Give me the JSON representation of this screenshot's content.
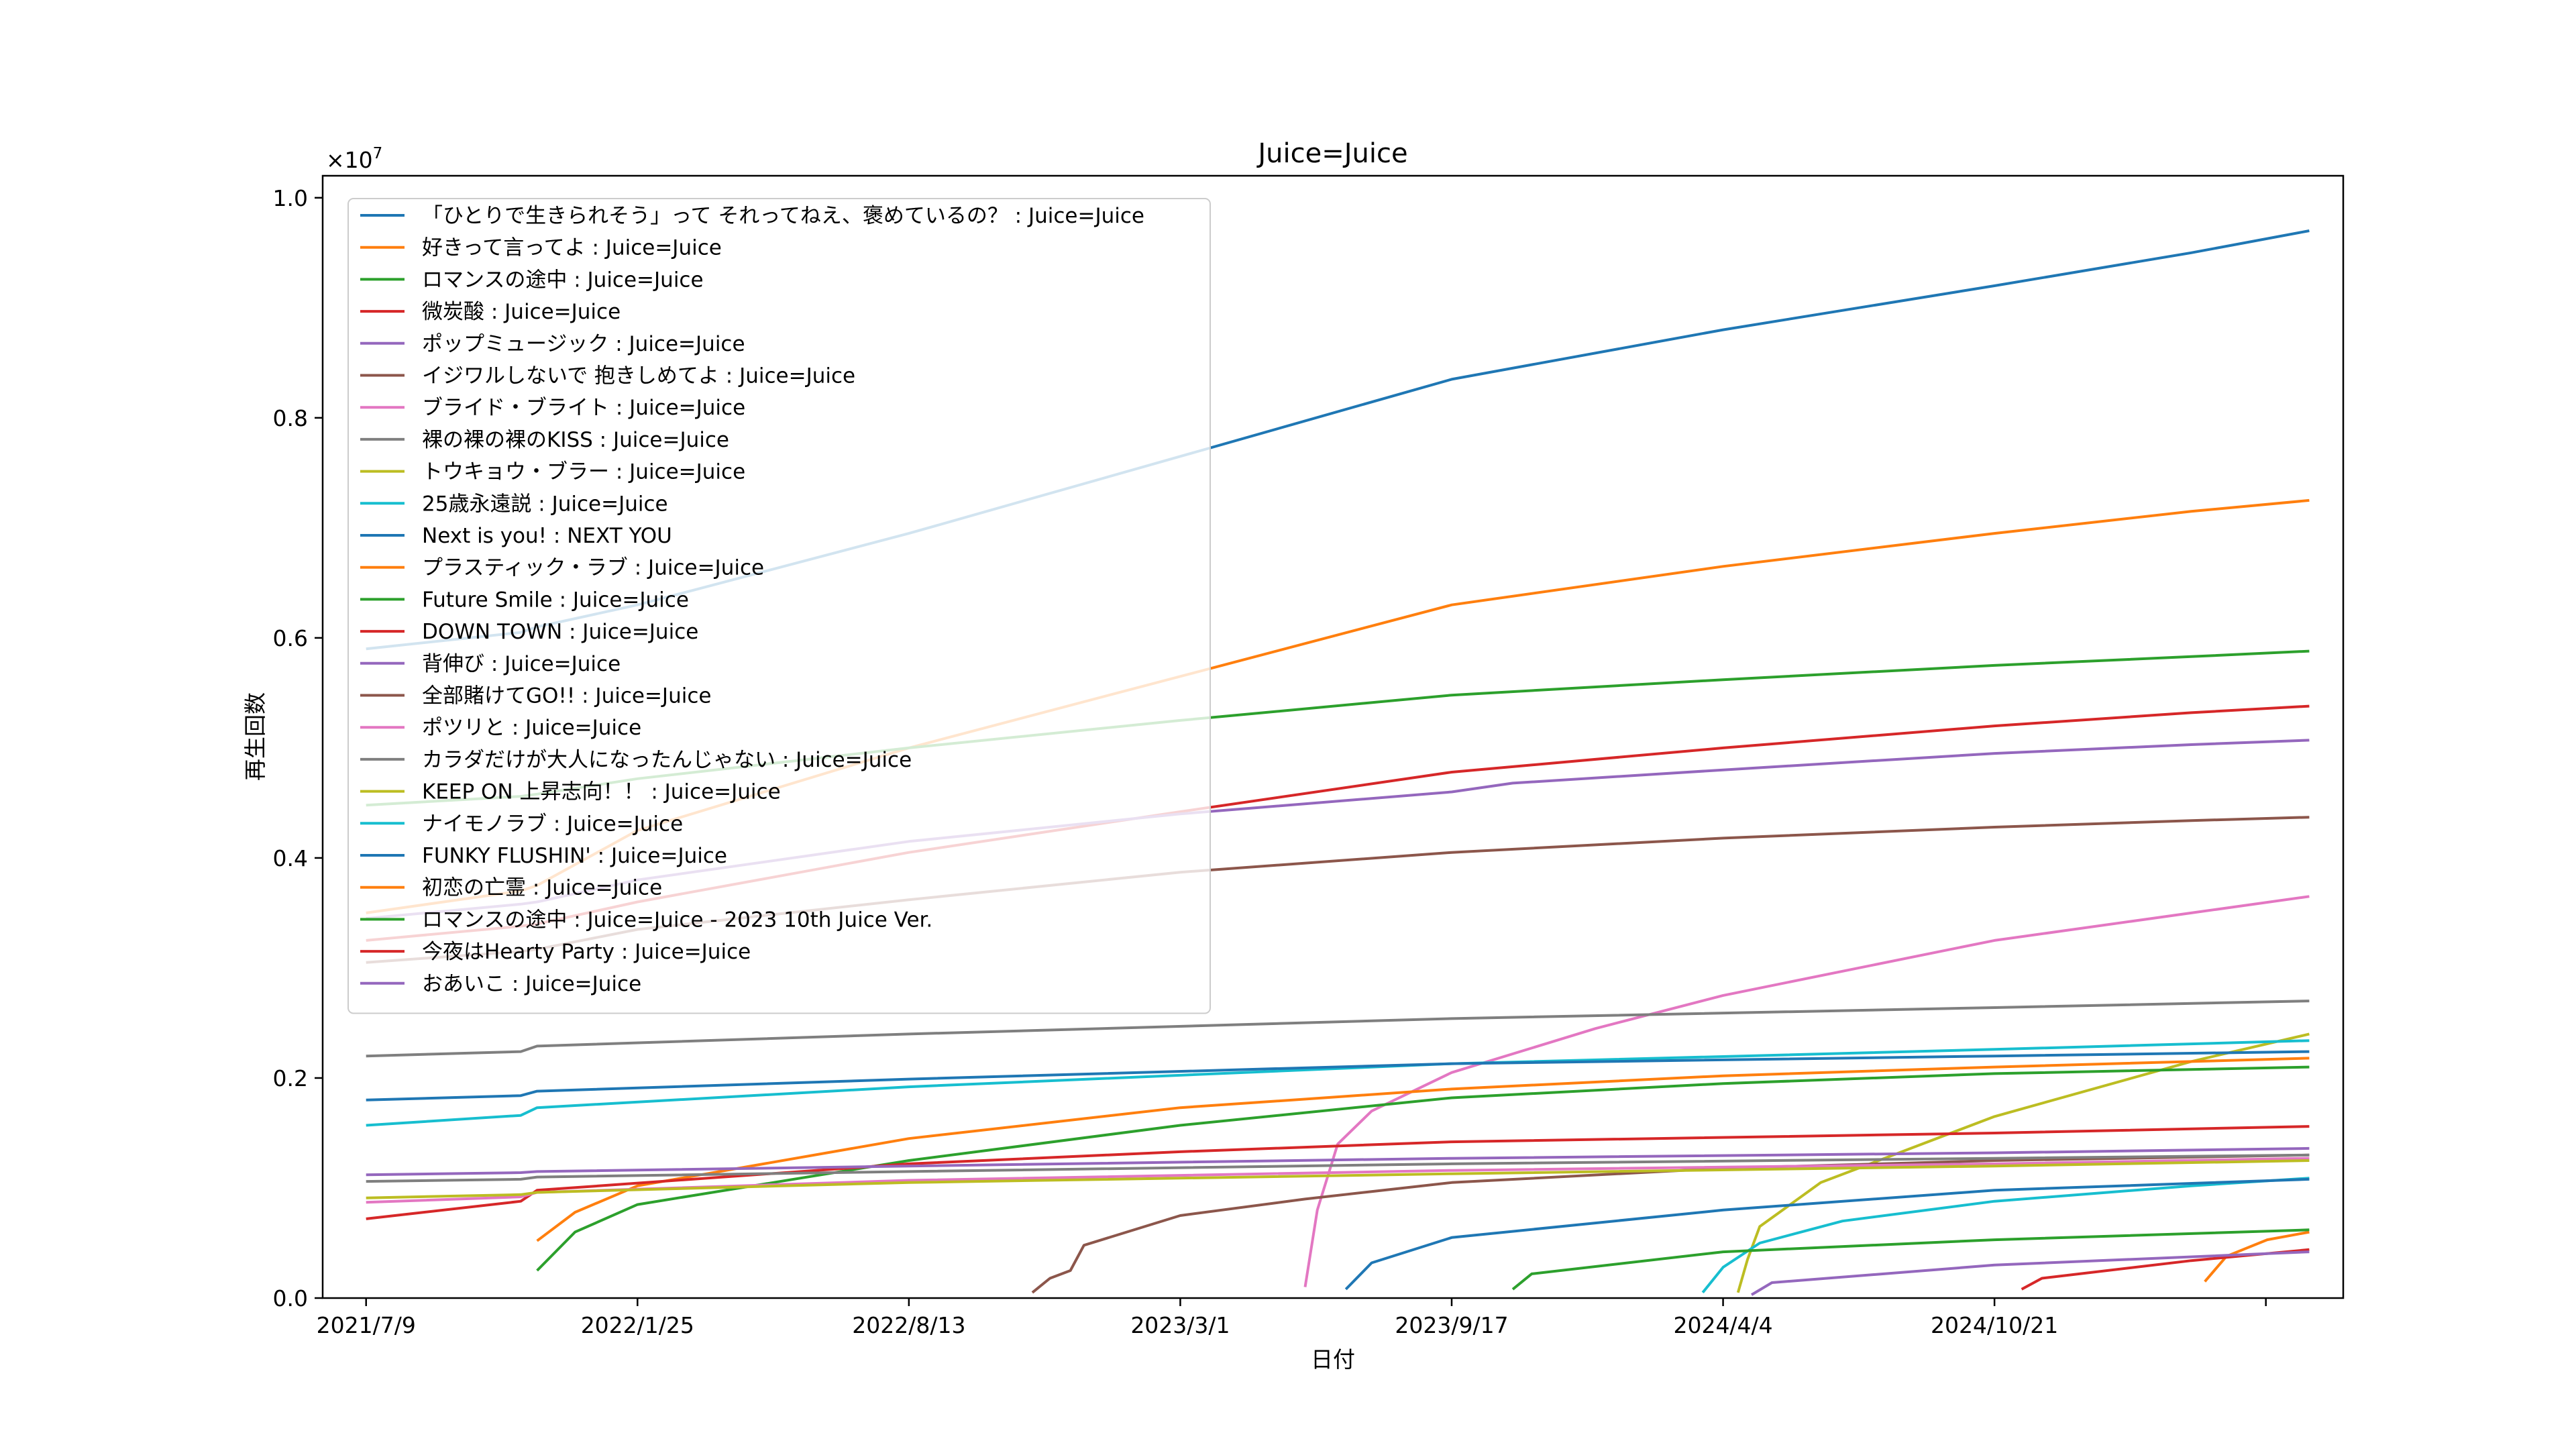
{
  "chart_data": {
    "type": "line",
    "title": "Juice=Juice",
    "xlabel": "日付",
    "ylabel": "再生回数",
    "y_offset_label": "×10",
    "y_offset_exp": "7",
    "ylim": [
      0,
      10200000
    ],
    "y_ticks": [
      0,
      2000000,
      4000000,
      6000000,
      8000000,
      10000000
    ],
    "y_tick_labels": [
      "0.0",
      "0.2",
      "0.4",
      "0.6",
      "0.8",
      "1.0"
    ],
    "x_ticks": [
      "2021-07-09",
      "2022-01-25",
      "2022-08-13",
      "2023-03-01",
      "2023-09-17",
      "2024-04-04",
      "2024-10-21"
    ],
    "x_tick_labels": [
      "2021/7/9",
      "2022/1/25",
      "2022/8/13",
      "2023/3/1",
      "2023/9/17",
      "2024/4/4",
      "2024/10/21"
    ],
    "xlim": [
      "2021-06-07",
      "2025-07-05"
    ],
    "legend_position": "top-left",
    "grid": false,
    "series": [
      {
        "name": "「ひとりで生きられそう」って それってねえ、褒めているの？ : Juice=Juice",
        "color": "#1f77b4",
        "points": [
          [
            "2021-07-09",
            5900000
          ],
          [
            "2021-10-31",
            6050000
          ],
          [
            "2021-11-12",
            6100000
          ],
          [
            "2022-01-25",
            6300000
          ],
          [
            "2022-08-13",
            6950000
          ],
          [
            "2023-03-01",
            7650000
          ],
          [
            "2023-09-17",
            8350000
          ],
          [
            "2024-04-04",
            8800000
          ],
          [
            "2024-10-21",
            9200000
          ],
          [
            "2025-03-15",
            9500000
          ],
          [
            "2025-06-10",
            9700000
          ]
        ]
      },
      {
        "name": "好きって言ってよ : Juice=Juice",
        "color": "#ff7f0e",
        "points": [
          [
            "2021-07-09",
            3500000
          ],
          [
            "2021-10-31",
            3700000
          ],
          [
            "2021-11-12",
            3750000
          ],
          [
            "2022-01-25",
            4250000
          ],
          [
            "2022-08-13",
            5000000
          ],
          [
            "2023-03-01",
            5650000
          ],
          [
            "2023-09-17",
            6300000
          ],
          [
            "2024-04-04",
            6650000
          ],
          [
            "2024-10-21",
            6950000
          ],
          [
            "2025-03-15",
            7150000
          ],
          [
            "2025-06-10",
            7250000
          ]
        ]
      },
      {
        "name": "ロマンスの途中 : Juice=Juice",
        "color": "#2ca02c",
        "points": [
          [
            "2021-07-09",
            4480000
          ],
          [
            "2021-10-31",
            4560000
          ],
          [
            "2021-11-12",
            4580000
          ],
          [
            "2022-01-25",
            4720000
          ],
          [
            "2022-08-13",
            5000000
          ],
          [
            "2023-03-01",
            5250000
          ],
          [
            "2023-09-17",
            5480000
          ],
          [
            "2024-04-04",
            5620000
          ],
          [
            "2024-10-21",
            5750000
          ],
          [
            "2025-03-15",
            5830000
          ],
          [
            "2025-06-10",
            5880000
          ]
        ]
      },
      {
        "name": "微炭酸 : Juice=Juice",
        "color": "#d62728",
        "points": [
          [
            "2021-07-09",
            3250000
          ],
          [
            "2021-10-31",
            3380000
          ],
          [
            "2021-11-12",
            3400000
          ],
          [
            "2022-01-25",
            3600000
          ],
          [
            "2022-08-13",
            4050000
          ],
          [
            "2023-03-01",
            4420000
          ],
          [
            "2023-09-17",
            4780000
          ],
          [
            "2024-04-04",
            5000000
          ],
          [
            "2024-10-21",
            5200000
          ],
          [
            "2025-03-15",
            5320000
          ],
          [
            "2025-06-10",
            5380000
          ]
        ]
      },
      {
        "name": "ポップミュージック : Juice=Juice",
        "color": "#9467bd",
        "points": [
          [
            "2021-07-09",
            3450000
          ],
          [
            "2021-10-31",
            3580000
          ],
          [
            "2021-11-12",
            3600000
          ],
          [
            "2022-01-25",
            3800000
          ],
          [
            "2022-08-13",
            4150000
          ],
          [
            "2023-03-01",
            4400000
          ],
          [
            "2023-09-17",
            4600000
          ],
          [
            "2023-11-01",
            4680000
          ],
          [
            "2024-04-04",
            4800000
          ],
          [
            "2024-10-21",
            4950000
          ],
          [
            "2025-03-15",
            5030000
          ],
          [
            "2025-06-10",
            5070000
          ]
        ]
      },
      {
        "name": "イジワルしないで 抱きしめてよ : Juice=Juice",
        "color": "#8c564b",
        "points": [
          [
            "2021-07-09",
            3050000
          ],
          [
            "2021-10-31",
            3150000
          ],
          [
            "2021-11-12",
            3170000
          ],
          [
            "2022-01-25",
            3350000
          ],
          [
            "2022-08-13",
            3620000
          ],
          [
            "2023-03-01",
            3870000
          ],
          [
            "2023-09-17",
            4050000
          ],
          [
            "2024-04-04",
            4180000
          ],
          [
            "2024-10-21",
            4280000
          ],
          [
            "2025-03-15",
            4340000
          ],
          [
            "2025-06-10",
            4370000
          ]
        ]
      },
      {
        "name": "ブライド・ブライト : Juice=Juice",
        "color": "#e377c2",
        "points": [
          [
            "2023-06-01",
            100000
          ],
          [
            "2023-06-10",
            800000
          ],
          [
            "2023-06-25",
            1400000
          ],
          [
            "2023-07-20",
            1700000
          ],
          [
            "2023-09-17",
            2050000
          ],
          [
            "2024-01-01",
            2450000
          ],
          [
            "2024-04-04",
            2750000
          ],
          [
            "2024-10-21",
            3250000
          ],
          [
            "2025-03-15",
            3500000
          ],
          [
            "2025-06-10",
            3650000
          ]
        ]
      },
      {
        "name": "裸の裸の裸のKISS : Juice=Juice",
        "color": "#7f7f7f",
        "points": [
          [
            "2021-07-09",
            2200000
          ],
          [
            "2021-10-31",
            2240000
          ],
          [
            "2021-11-12",
            2290000
          ],
          [
            "2022-08-13",
            2400000
          ],
          [
            "2023-09-17",
            2540000
          ],
          [
            "2024-10-21",
            2640000
          ],
          [
            "2025-06-10",
            2700000
          ]
        ]
      },
      {
        "name": "トウキョウ・ブラー : Juice=Juice",
        "color": "#bcbd22",
        "points": [
          [
            "2024-04-15",
            50000
          ],
          [
            "2024-04-22",
            350000
          ],
          [
            "2024-05-01",
            650000
          ],
          [
            "2024-06-15",
            1050000
          ],
          [
            "2024-10-21",
            1650000
          ],
          [
            "2025-03-15",
            2150000
          ],
          [
            "2025-06-10",
            2400000
          ]
        ]
      },
      {
        "name": "25歳永遠説 : Juice=Juice",
        "color": "#17becf",
        "points": [
          [
            "2021-07-09",
            1570000
          ],
          [
            "2021-10-31",
            1660000
          ],
          [
            "2021-11-12",
            1730000
          ],
          [
            "2022-08-13",
            1920000
          ],
          [
            "2023-09-17",
            2130000
          ],
          [
            "2024-10-21",
            2260000
          ],
          [
            "2025-06-10",
            2340000
          ]
        ]
      },
      {
        "name": "Next is you! : NEXT YOU",
        "color": "#1f77b4",
        "points": [
          [
            "2021-07-09",
            1800000
          ],
          [
            "2021-10-31",
            1840000
          ],
          [
            "2021-11-12",
            1880000
          ],
          [
            "2022-08-13",
            1990000
          ],
          [
            "2023-09-17",
            2130000
          ],
          [
            "2024-10-21",
            2200000
          ],
          [
            "2025-06-10",
            2240000
          ]
        ]
      },
      {
        "name": "プラスティック・ラブ : Juice=Juice",
        "color": "#ff7f0e",
        "points": [
          [
            "2021-11-12",
            520000
          ],
          [
            "2021-12-10",
            780000
          ],
          [
            "2022-01-25",
            1020000
          ],
          [
            "2022-08-13",
            1450000
          ],
          [
            "2023-03-01",
            1730000
          ],
          [
            "2023-09-17",
            1900000
          ],
          [
            "2024-04-04",
            2020000
          ],
          [
            "2024-10-21",
            2100000
          ],
          [
            "2025-06-10",
            2180000
          ]
        ]
      },
      {
        "name": "Future Smile : Juice=Juice",
        "color": "#2ca02c",
        "points": [
          [
            "2021-11-12",
            250000
          ],
          [
            "2021-12-10",
            600000
          ],
          [
            "2022-01-25",
            850000
          ],
          [
            "2022-08-13",
            1250000
          ],
          [
            "2023-03-01",
            1570000
          ],
          [
            "2023-09-17",
            1820000
          ],
          [
            "2024-04-04",
            1950000
          ],
          [
            "2024-10-21",
            2040000
          ],
          [
            "2025-06-10",
            2100000
          ]
        ]
      },
      {
        "name": "DOWN TOWN : Juice=Juice",
        "color": "#d62728",
        "points": [
          [
            "2021-07-09",
            720000
          ],
          [
            "2021-10-31",
            880000
          ],
          [
            "2021-11-12",
            980000
          ],
          [
            "2022-08-13",
            1220000
          ],
          [
            "2023-03-01",
            1330000
          ],
          [
            "2023-09-17",
            1420000
          ],
          [
            "2024-10-21",
            1500000
          ],
          [
            "2025-06-10",
            1560000
          ]
        ]
      },
      {
        "name": "背伸び : Juice=Juice",
        "color": "#9467bd",
        "points": [
          [
            "2021-07-09",
            1120000
          ],
          [
            "2021-10-31",
            1140000
          ],
          [
            "2021-11-12",
            1150000
          ],
          [
            "2022-08-13",
            1200000
          ],
          [
            "2023-09-17",
            1270000
          ],
          [
            "2024-10-21",
            1320000
          ],
          [
            "2025-06-10",
            1360000
          ]
        ]
      },
      {
        "name": "全部賭けてGO!! : Juice=Juice",
        "color": "#8c564b",
        "points": [
          [
            "2022-11-12",
            50000
          ],
          [
            "2022-11-25",
            180000
          ],
          [
            "2022-12-10",
            250000
          ],
          [
            "2022-12-20",
            480000
          ],
          [
            "2023-03-01",
            750000
          ],
          [
            "2023-06-01",
            900000
          ],
          [
            "2023-09-17",
            1050000
          ],
          [
            "2024-04-04",
            1180000
          ],
          [
            "2024-10-21",
            1250000
          ],
          [
            "2025-06-10",
            1300000
          ]
        ]
      },
      {
        "name": "ポツリと : Juice=Juice",
        "color": "#e377c2",
        "points": [
          [
            "2021-07-09",
            870000
          ],
          [
            "2021-10-31",
            920000
          ],
          [
            "2021-11-12",
            960000
          ],
          [
            "2022-08-13",
            1070000
          ],
          [
            "2023-09-17",
            1160000
          ],
          [
            "2024-10-21",
            1220000
          ],
          [
            "2025-06-10",
            1270000
          ]
        ]
      },
      {
        "name": "カラダだけが大人になったんじゃない : Juice=Juice",
        "color": "#7f7f7f",
        "points": [
          [
            "2021-07-09",
            1060000
          ],
          [
            "2021-10-31",
            1080000
          ],
          [
            "2021-11-12",
            1100000
          ],
          [
            "2022-08-13",
            1150000
          ],
          [
            "2023-09-17",
            1220000
          ],
          [
            "2024-10-21",
            1270000
          ],
          [
            "2025-06-10",
            1300000
          ]
        ]
      },
      {
        "name": "KEEP ON 上昇志向！！ : Juice=Juice",
        "color": "#bcbd22",
        "points": [
          [
            "2021-07-09",
            910000
          ],
          [
            "2021-10-31",
            940000
          ],
          [
            "2021-11-12",
            960000
          ],
          [
            "2022-08-13",
            1050000
          ],
          [
            "2023-09-17",
            1130000
          ],
          [
            "2024-10-21",
            1200000
          ],
          [
            "2025-06-10",
            1250000
          ]
        ]
      },
      {
        "name": "ナイモノラブ : Juice=Juice",
        "color": "#17becf",
        "points": [
          [
            "2024-03-20",
            50000
          ],
          [
            "2024-04-04",
            280000
          ],
          [
            "2024-05-01",
            500000
          ],
          [
            "2024-07-01",
            700000
          ],
          [
            "2024-10-21",
            880000
          ],
          [
            "2025-03-15",
            1020000
          ],
          [
            "2025-06-10",
            1090000
          ]
        ]
      },
      {
        "name": "FUNKY FLUSHIN' : Juice=Juice",
        "color": "#1f77b4",
        "points": [
          [
            "2023-07-01",
            80000
          ],
          [
            "2023-07-20",
            320000
          ],
          [
            "2023-09-17",
            550000
          ],
          [
            "2024-04-04",
            800000
          ],
          [
            "2024-10-21",
            980000
          ],
          [
            "2025-06-10",
            1080000
          ]
        ]
      },
      {
        "name": "初恋の亡霊 : Juice=Juice",
        "color": "#ff7f0e",
        "points": [
          [
            "2025-03-25",
            150000
          ],
          [
            "2025-04-10",
            380000
          ],
          [
            "2025-05-10",
            530000
          ],
          [
            "2025-06-10",
            600000
          ]
        ]
      },
      {
        "name": "ロマンスの途中 : Juice=Juice - 2023 10th Juice Ver.",
        "color": "#2ca02c",
        "points": [
          [
            "2023-11-01",
            80000
          ],
          [
            "2023-11-15",
            220000
          ],
          [
            "2024-04-04",
            420000
          ],
          [
            "2024-10-21",
            530000
          ],
          [
            "2025-06-10",
            620000
          ]
        ]
      },
      {
        "name": "今夜はHearty Party : Juice=Juice",
        "color": "#d62728",
        "points": [
          [
            "2024-11-10",
            80000
          ],
          [
            "2024-11-25",
            180000
          ],
          [
            "2025-03-15",
            340000
          ],
          [
            "2025-06-10",
            440000
          ]
        ]
      },
      {
        "name": "おあいこ : Juice=Juice",
        "color": "#9467bd",
        "points": [
          [
            "2024-04-25",
            30000
          ],
          [
            "2024-05-10",
            140000
          ],
          [
            "2024-10-21",
            300000
          ],
          [
            "2025-06-10",
            420000
          ]
        ]
      }
    ]
  }
}
